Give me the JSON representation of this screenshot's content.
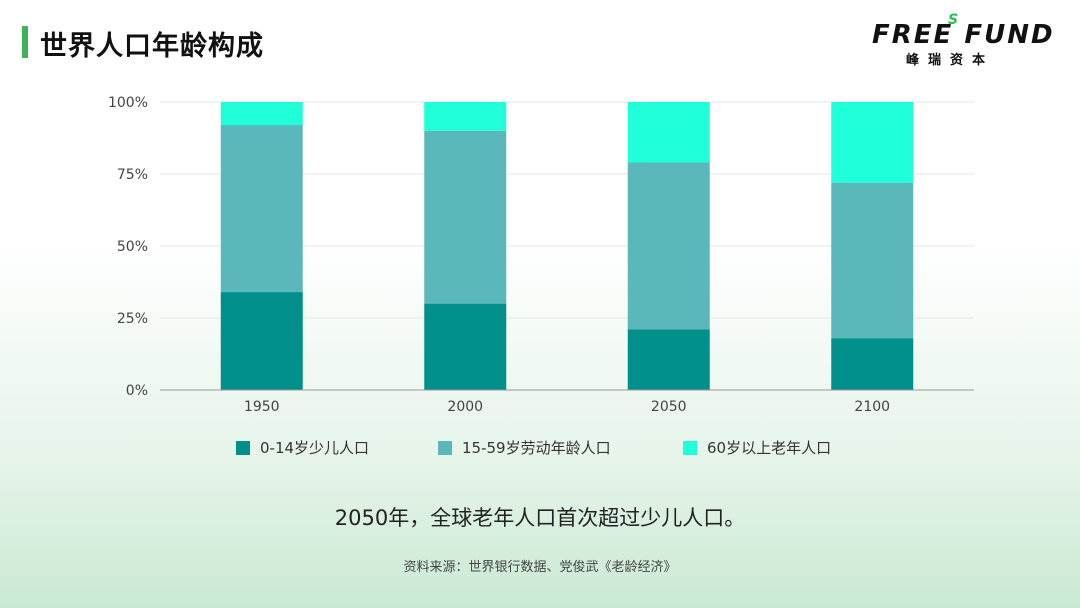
{
  "title": "世界人口年龄构成",
  "logo": {
    "main": "FREE FUND",
    "s": "S",
    "sub": "峰瑞资本"
  },
  "colors": {
    "series0": "#008f8b",
    "series1": "#5ab8bb",
    "series2": "#1fffd9",
    "accent": "#3fb35c",
    "grid": "#e6e6e6",
    "axis": "#999999"
  },
  "chart_data": {
    "type": "bar",
    "stacked": true,
    "categories": [
      "1950",
      "2000",
      "2050",
      "2100"
    ],
    "series": [
      {
        "name": "0-14岁少儿人口",
        "values": [
          34,
          30,
          21,
          18
        ]
      },
      {
        "name": "15-59岁劳动年龄人口",
        "values": [
          58,
          60,
          58,
          54
        ]
      },
      {
        "name": "60岁以上老年人口",
        "values": [
          8,
          10,
          21,
          28
        ]
      }
    ],
    "ylim": [
      0,
      100
    ],
    "yticks": [
      "0%",
      "25%",
      "50%",
      "75%",
      "100%"
    ],
    "grid": true,
    "legend_position": "bottom"
  },
  "conclusion": "2050年，全球老年人口首次超过少儿人口。",
  "source": "资料来源：世界银行数据、党俊武《老龄经济》"
}
